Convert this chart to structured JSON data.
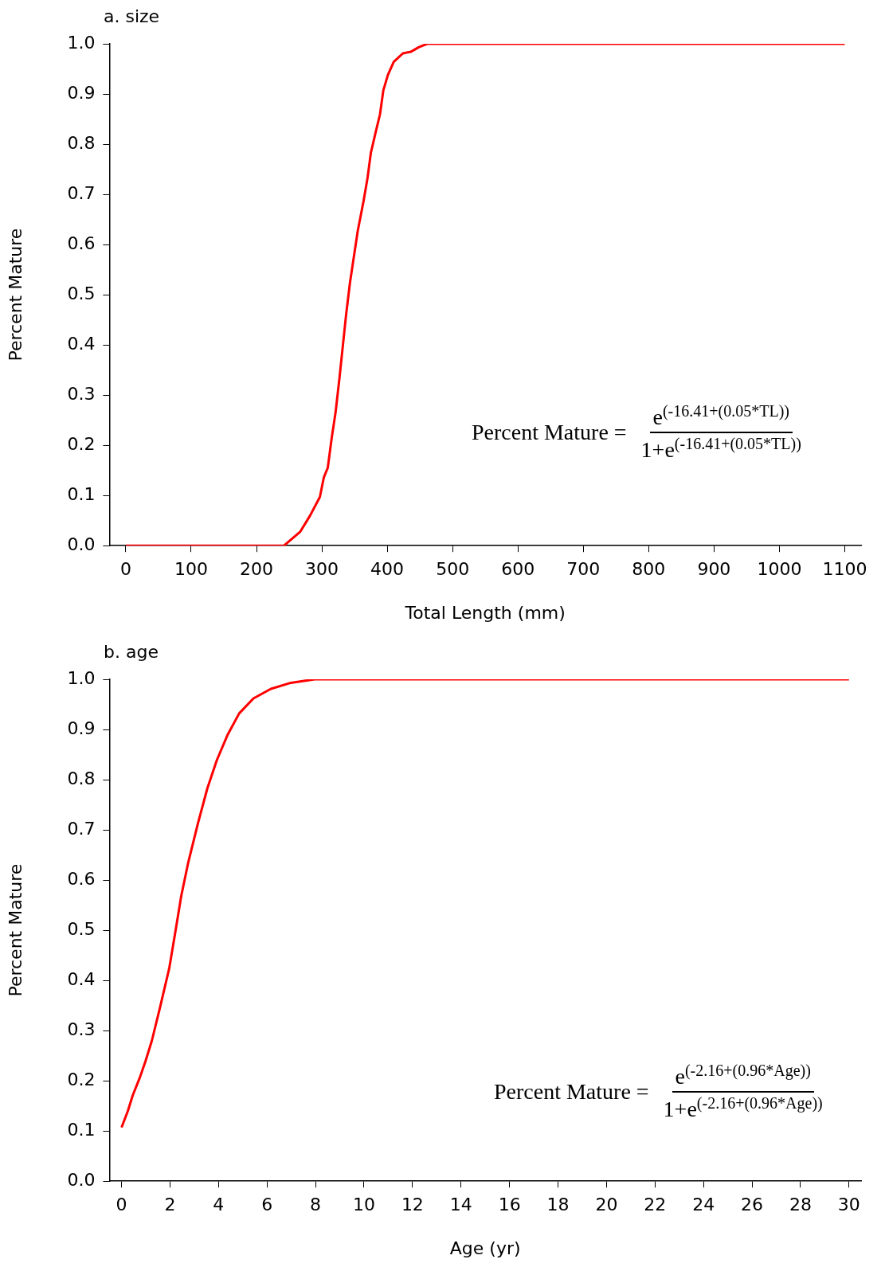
{
  "chart_data": [
    {
      "type": "line",
      "title": "a. size",
      "xlabel": "Total Length (mm)",
      "ylabel": "Percent Mature",
      "color": "#ff0000",
      "line_style": "solid",
      "grid": false,
      "legend": false,
      "x": [
        0,
        242,
        267,
        282,
        297,
        303,
        309,
        315,
        321,
        327,
        337,
        343,
        355,
        364,
        370,
        375,
        382,
        389,
        394,
        401,
        410,
        424,
        436,
        448,
        461,
        1100
      ],
      "values": [
        0,
        0,
        0.028,
        0.06,
        0.097,
        0.136,
        0.155,
        0.214,
        0.266,
        0.335,
        0.459,
        0.524,
        0.628,
        0.688,
        0.734,
        0.783,
        0.822,
        0.86,
        0.907,
        0.938,
        0.964,
        0.981,
        0.984,
        0.993,
        1,
        1
      ],
      "xlim": [
        -25,
        1125
      ],
      "xticks": [
        0,
        100,
        200,
        300,
        400,
        500,
        600,
        700,
        800,
        900,
        1000,
        1100
      ],
      "ylim": [
        0,
        1
      ],
      "yticks": [
        {
          "value": 0,
          "label": "0.0"
        },
        {
          "value": 0.1,
          "label": "0.1"
        },
        {
          "value": 0.2,
          "label": "0.2"
        },
        {
          "value": 0.3,
          "label": "0.3"
        },
        {
          "value": 0.4,
          "label": "0.4"
        },
        {
          "value": 0.5,
          "label": "0.5"
        },
        {
          "value": 0.6,
          "label": "0.6"
        },
        {
          "value": 0.7,
          "label": "0.7"
        },
        {
          "value": 0.8,
          "label": "0.8"
        },
        {
          "value": 0.9,
          "label": "0.9"
        },
        {
          "value": 1,
          "label": "1.0"
        }
      ],
      "annotations": [
        "Percent Mature =",
        "e$^{(-16.41+(0.05*TL))}$",
        "1+e$^{(-16.41+(0.05*TL))}$"
      ]
    },
    {
      "type": "line",
      "title": "b. age",
      "xlabel": "Age (yr)",
      "ylabel": "Percent Mature",
      "color": "#ff0000",
      "line_style": "solid",
      "grid": false,
      "legend": false,
      "x": [
        0,
        0.26,
        0.46,
        0.75,
        0.98,
        1.25,
        1.57,
        1.97,
        2.23,
        2.46,
        2.75,
        3.15,
        3.54,
        3.93,
        4.36,
        4.85,
        5.44,
        6.16,
        6.98,
        7.97,
        30
      ],
      "values": [
        0.107,
        0.14,
        0.171,
        0.206,
        0.238,
        0.28,
        0.343,
        0.425,
        0.5,
        0.568,
        0.635,
        0.713,
        0.783,
        0.839,
        0.888,
        0.932,
        0.962,
        0.981,
        0.993,
        1,
        1
      ],
      "xlim": [
        -0.5,
        30.5
      ],
      "xticks": [
        0,
        2,
        4,
        6,
        8,
        10,
        12,
        14,
        16,
        18,
        20,
        22,
        24,
        26,
        28,
        30
      ],
      "ylim": [
        0,
        1
      ],
      "yticks": [
        {
          "value": 0,
          "label": "0.0"
        },
        {
          "value": 0.1,
          "label": "0.1"
        },
        {
          "value": 0.2,
          "label": "0.2"
        },
        {
          "value": 0.3,
          "label": "0.3"
        },
        {
          "value": 0.4,
          "label": "0.4"
        },
        {
          "value": 0.5,
          "label": "0.5"
        },
        {
          "value": 0.6,
          "label": "0.6"
        },
        {
          "value": 0.7,
          "label": "0.7"
        },
        {
          "value": 0.8,
          "label": "0.8"
        },
        {
          "value": 0.9,
          "label": "0.9"
        },
        {
          "value": 1,
          "label": "1.0"
        }
      ],
      "annotations": [
        "Percent Mature =",
        "e$^{(-2.16+(0.96*Age))}$",
        "1+e$^{(-2.16+(0.96*Age))}$"
      ]
    }
  ]
}
